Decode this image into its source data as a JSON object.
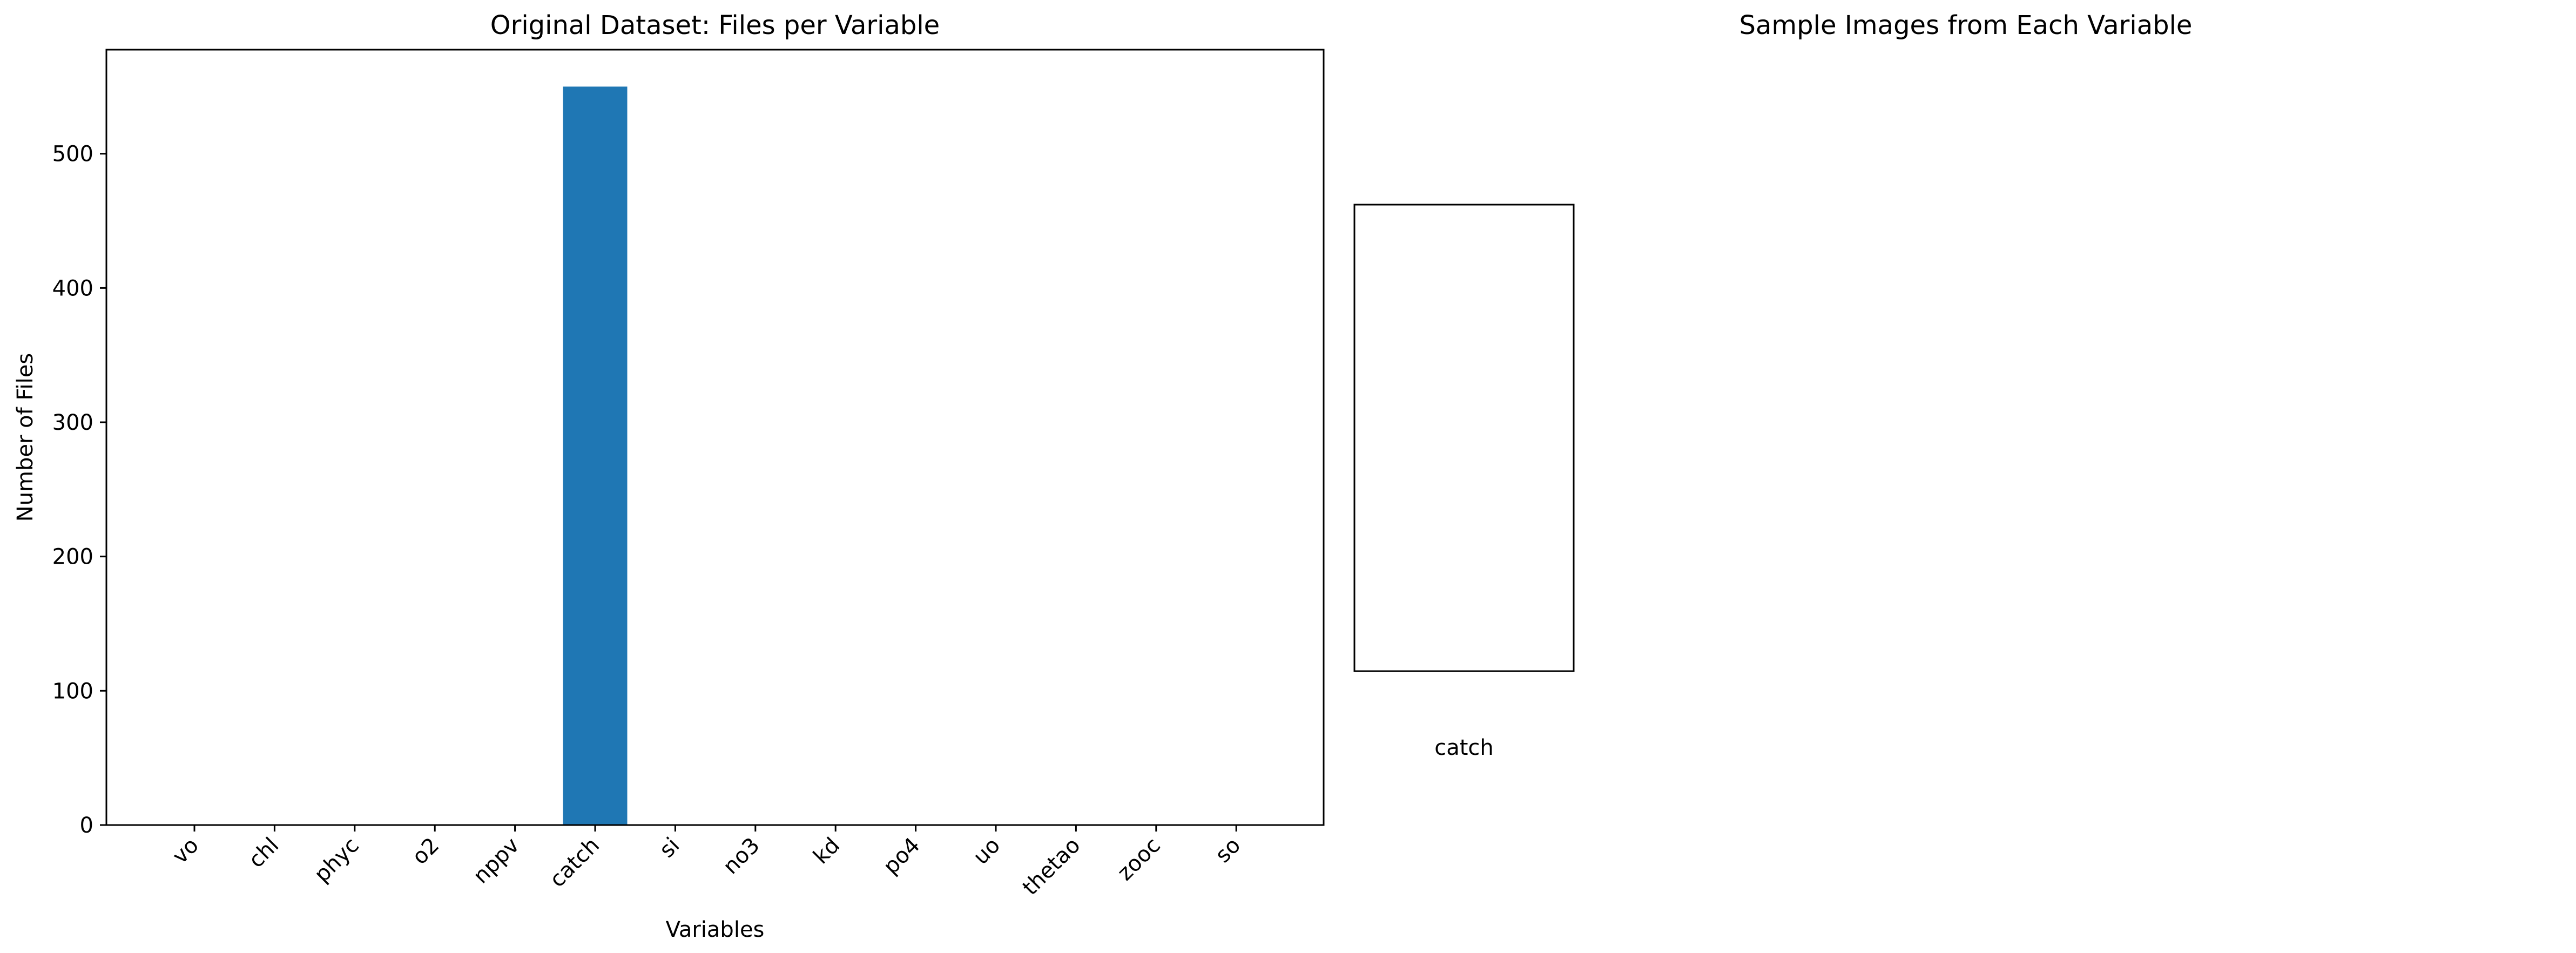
{
  "chart_data": [
    {
      "type": "bar",
      "title": "Original Dataset: Files per Variable",
      "xlabel": "Variables",
      "ylabel": "Number of Files",
      "categories": [
        "vo",
        "chl",
        "phyc",
        "o2",
        "nppv",
        "catch",
        "si",
        "no3",
        "kd",
        "po4",
        "uo",
        "thetao",
        "zooc",
        "so"
      ],
      "values": [
        0,
        0,
        0,
        0,
        0,
        550,
        0,
        0,
        0,
        0,
        0,
        0,
        0,
        0
      ],
      "ylim": [
        0,
        577.5
      ],
      "yticks": [
        0,
        100,
        200,
        300,
        400,
        500
      ],
      "ytick_labels": [
        "0",
        "100",
        "200",
        "300",
        "400",
        "500"
      ],
      "bar_color": "#1f77b4",
      "grid": false,
      "legend": "none"
    },
    {
      "type": "image",
      "title": "Sample Images from Each Variable",
      "panels": [
        {
          "label": "catch",
          "content": "blank"
        }
      ]
    }
  ]
}
